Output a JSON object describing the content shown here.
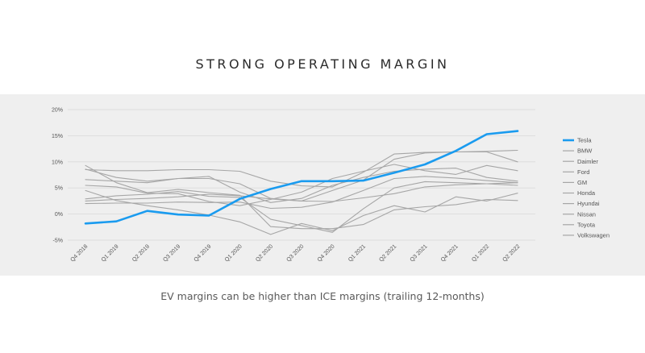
{
  "slide": {
    "title": "STRONG OPERATING MARGIN",
    "caption": "EV margins can be higher than ICE margins (trailing 12-months)"
  },
  "chart_data": {
    "type": "line",
    "title": "",
    "xlabel": "",
    "ylabel": "",
    "ylim": [
      -5,
      20
    ],
    "yticks": [
      "-5%",
      "0%",
      "5%",
      "10%",
      "15%",
      "20%"
    ],
    "categories": [
      "Q4 2018",
      "Q1 2019",
      "Q2 2019",
      "Q3 2019",
      "Q4 2019",
      "Q1 2020",
      "Q2 2020",
      "Q3 2020",
      "Q4 2020",
      "Q1 2021",
      "Q2 2021",
      "Q3 2021",
      "Q4 2021",
      "Q1 2022",
      "Q2 2022"
    ],
    "grid": true,
    "legend_position": "right",
    "highlight_color": "#1a9bef",
    "other_color": "#a6a6a6",
    "series": [
      {
        "name": "Tesla",
        "highlight": true,
        "values": [
          -1.8,
          -1.4,
          0.6,
          -0.1,
          -0.3,
          2.9,
          4.8,
          6.3,
          6.3,
          6.4,
          7.9,
          9.5,
          12.1,
          15.3,
          15.9
        ]
      },
      {
        "name": "BMW",
        "values": [
          8.6,
          7.0,
          6.3,
          6.8,
          6.8,
          5.8,
          3.0,
          2.5,
          4.5,
          6.5,
          10.5,
          11.7,
          11.9,
          12.0,
          12.2
        ]
      },
      {
        "name": "Daimler",
        "values": [
          8.5,
          8.3,
          8.3,
          8.5,
          8.5,
          8.2,
          6.3,
          5.4,
          5.2,
          8.0,
          11.5,
          11.8,
          11.9,
          11.9,
          10.0
        ]
      },
      {
        "name": "Ford",
        "values": [
          2.9,
          3.5,
          3.8,
          4.3,
          3.4,
          3.2,
          -1.0,
          -2.2,
          -3.5,
          1.0,
          5.0,
          6.2,
          6.0,
          5.8,
          5.5
        ]
      },
      {
        "name": "GM",
        "values": [
          5.5,
          5.2,
          4.0,
          3.9,
          2.4,
          1.6,
          2.8,
          4.2,
          6.8,
          8.2,
          9.5,
          8.3,
          7.6,
          9.3,
          8.3
        ]
      },
      {
        "name": "Honda",
        "values": [
          6.6,
          6.3,
          6.0,
          6.8,
          7.2,
          4.2,
          2.2,
          3.0,
          5.5,
          7.0,
          8.2,
          8.6,
          8.8,
          7.0,
          6.3
        ]
      },
      {
        "name": "Hyundai",
        "values": [
          2.5,
          2.8,
          3.0,
          3.3,
          3.8,
          3.5,
          2.9,
          2.5,
          2.4,
          3.1,
          3.9,
          5.2,
          5.6,
          5.8,
          6.0
        ]
      },
      {
        "name": "Nissan",
        "values": [
          4.5,
          2.6,
          1.6,
          0.8,
          -0.2,
          -1.5,
          -3.9,
          -1.8,
          -3.2,
          -0.3,
          1.6,
          0.4,
          3.3,
          2.5,
          4.0
        ]
      },
      {
        "name": "Toyota",
        "values": [
          2.0,
          2.1,
          2.1,
          2.3,
          2.2,
          2.3,
          1.1,
          1.3,
          2.3,
          4.5,
          6.8,
          7.2,
          6.9,
          6.4,
          6.0
        ]
      },
      {
        "name": "Volkswagen",
        "values": [
          9.3,
          6.0,
          4.1,
          4.7,
          4.1,
          3.6,
          -2.4,
          -2.8,
          -2.8,
          -2.0,
          0.8,
          1.4,
          1.8,
          2.8,
          2.6
        ]
      }
    ]
  }
}
